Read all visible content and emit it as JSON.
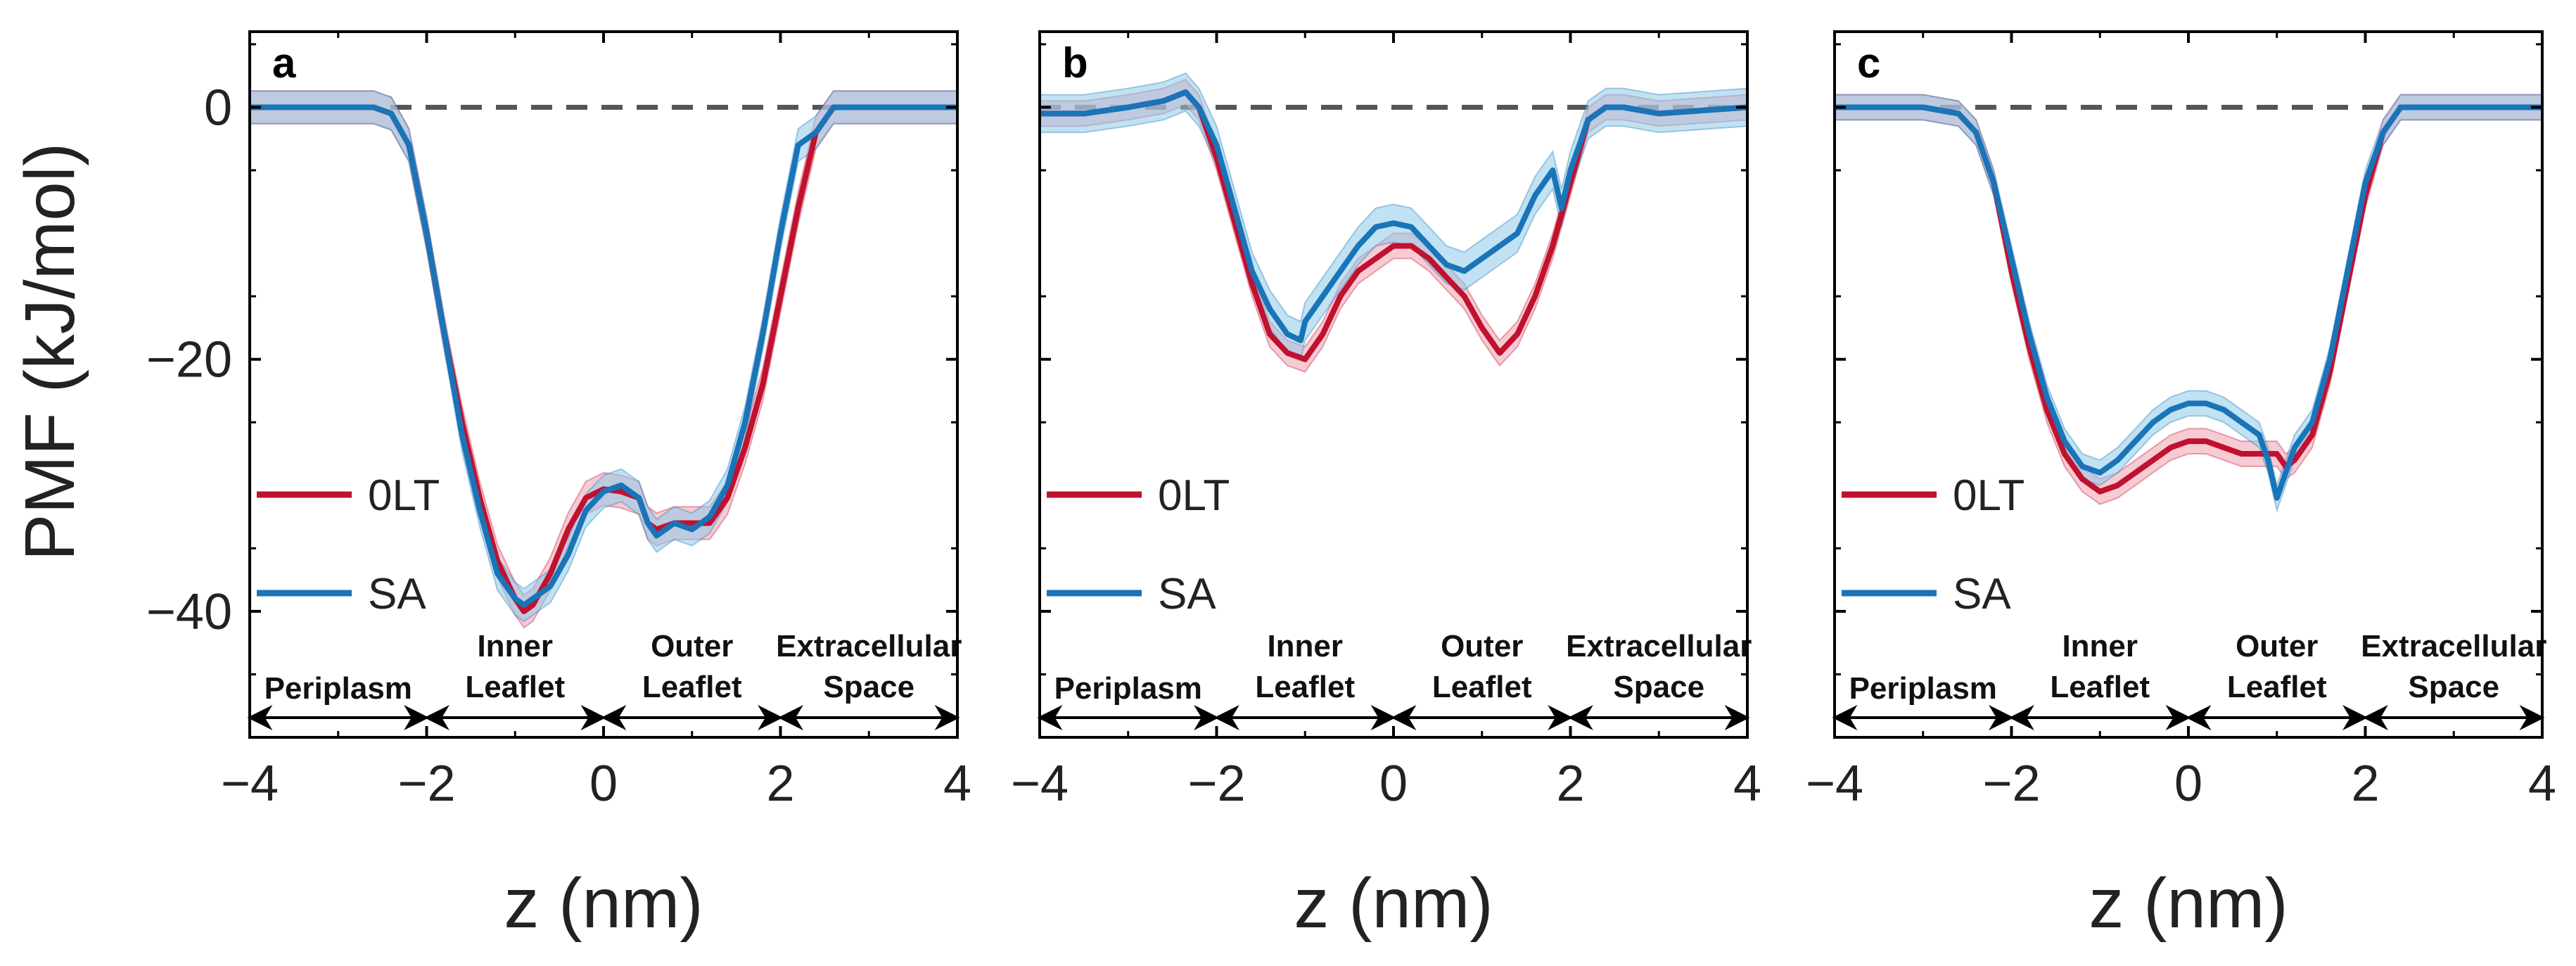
{
  "chart_data": {
    "type": "line",
    "ylabel": "PMF (kJ/mol)",
    "xlabel": "z (nm)",
    "xlim": [
      -4,
      4
    ],
    "ylim": [
      -50,
      6
    ],
    "xticks": [
      -4,
      -2,
      0,
      2,
      4
    ],
    "xtick_labels": [
      "−4",
      "−2",
      "0",
      "2",
      "4"
    ],
    "yticks": [
      0,
      -20,
      -40
    ],
    "ytick_labels": [
      "0",
      "−20",
      "−40"
    ],
    "reference_line": {
      "y": 0,
      "style": "dashed",
      "color": "#555555"
    },
    "colors": {
      "0LT": "#c0112f",
      "SA": "#1a74b8",
      "band_0LT": "#f0a0ae",
      "band_SA": "#8ecbea"
    },
    "regions": [
      {
        "label_lines": [
          "Periplasm"
        ],
        "x_start": -4,
        "x_end": -2
      },
      {
        "label_lines": [
          "Inner",
          "Leaflet"
        ],
        "x_start": -2,
        "x_end": 0
      },
      {
        "label_lines": [
          "Outer",
          "Leaflet"
        ],
        "x_start": 0,
        "x_end": 2
      },
      {
        "label_lines": [
          "Extracellular",
          "Space"
        ],
        "x_start": 2,
        "x_end": 4
      }
    ],
    "panels": [
      {
        "letter": "a",
        "series": [
          {
            "name": "0LT",
            "band": 1.3,
            "points": [
              [
                -4,
                0
              ],
              [
                -3,
                0
              ],
              [
                -2.6,
                0
              ],
              [
                -2.4,
                -0.5
              ],
              [
                -2.2,
                -3
              ],
              [
                -2,
                -10
              ],
              [
                -1.8,
                -18
              ],
              [
                -1.6,
                -25
              ],
              [
                -1.4,
                -31
              ],
              [
                -1.2,
                -36
              ],
              [
                -1.0,
                -39
              ],
              [
                -0.9,
                -40
              ],
              [
                -0.8,
                -39.5
              ],
              [
                -0.6,
                -37
              ],
              [
                -0.4,
                -33.5
              ],
              [
                -0.2,
                -31
              ],
              [
                0,
                -30.3
              ],
              [
                0.2,
                -30.5
              ],
              [
                0.4,
                -31
              ],
              [
                0.5,
                -33
              ],
              [
                0.6,
                -33.5
              ],
              [
                0.8,
                -33
              ],
              [
                1.0,
                -33
              ],
              [
                1.2,
                -33
              ],
              [
                1.4,
                -31
              ],
              [
                1.6,
                -27
              ],
              [
                1.8,
                -22
              ],
              [
                2.0,
                -15
              ],
              [
                2.2,
                -8
              ],
              [
                2.4,
                -2
              ],
              [
                2.6,
                0
              ],
              [
                3,
                0
              ],
              [
                4,
                0
              ]
            ]
          },
          {
            "name": "SA",
            "band": 1.3,
            "points": [
              [
                -4,
                0
              ],
              [
                -3,
                0
              ],
              [
                -2.6,
                0
              ],
              [
                -2.4,
                -0.5
              ],
              [
                -2.2,
                -3
              ],
              [
                -2,
                -10
              ],
              [
                -1.8,
                -18
              ],
              [
                -1.6,
                -26
              ],
              [
                -1.4,
                -32
              ],
              [
                -1.2,
                -37
              ],
              [
                -1.0,
                -39
              ],
              [
                -0.9,
                -39.5
              ],
              [
                -0.8,
                -39
              ],
              [
                -0.6,
                -38
              ],
              [
                -0.4,
                -35.5
              ],
              [
                -0.2,
                -32
              ],
              [
                0,
                -30.5
              ],
              [
                0.2,
                -30
              ],
              [
                0.4,
                -31
              ],
              [
                0.5,
                -33
              ],
              [
                0.6,
                -34
              ],
              [
                0.8,
                -33
              ],
              [
                1.0,
                -33.5
              ],
              [
                1.2,
                -32.5
              ],
              [
                1.4,
                -30
              ],
              [
                1.6,
                -25
              ],
              [
                1.8,
                -18
              ],
              [
                2.0,
                -10
              ],
              [
                2.2,
                -3
              ],
              [
                2.4,
                -2
              ],
              [
                2.6,
                0
              ],
              [
                3,
                0
              ],
              [
                4,
                0
              ]
            ]
          }
        ]
      },
      {
        "letter": "b",
        "series": [
          {
            "name": "0LT",
            "band": 1.0,
            "points": [
              [
                -4,
                -0.5
              ],
              [
                -3.5,
                -0.5
              ],
              [
                -3,
                0
              ],
              [
                -2.6,
                0.5
              ],
              [
                -2.35,
                1.2
              ],
              [
                -2.2,
                0
              ],
              [
                -2.0,
                -4
              ],
              [
                -1.8,
                -9
              ],
              [
                -1.6,
                -14
              ],
              [
                -1.4,
                -18
              ],
              [
                -1.2,
                -19.5
              ],
              [
                -1.0,
                -20
              ],
              [
                -0.8,
                -18
              ],
              [
                -0.6,
                -15
              ],
              [
                -0.4,
                -13
              ],
              [
                -0.2,
                -12
              ],
              [
                0,
                -11
              ],
              [
                0.2,
                -11
              ],
              [
                0.4,
                -12
              ],
              [
                0.6,
                -13.5
              ],
              [
                0.8,
                -15
              ],
              [
                1.0,
                -17.5
              ],
              [
                1.2,
                -19.5
              ],
              [
                1.4,
                -18
              ],
              [
                1.6,
                -15
              ],
              [
                1.8,
                -11
              ],
              [
                2.0,
                -6
              ],
              [
                2.2,
                -1
              ],
              [
                2.4,
                0
              ],
              [
                2.6,
                0
              ],
              [
                3,
                -0.5
              ],
              [
                4,
                0
              ]
            ]
          },
          {
            "name": "SA",
            "band": 1.5,
            "points": [
              [
                -4,
                -0.5
              ],
              [
                -3.5,
                -0.5
              ],
              [
                -3,
                0
              ],
              [
                -2.6,
                0.5
              ],
              [
                -2.35,
                1.2
              ],
              [
                -2.2,
                0
              ],
              [
                -2.0,
                -3
              ],
              [
                -1.8,
                -8
              ],
              [
                -1.6,
                -13
              ],
              [
                -1.4,
                -16
              ],
              [
                -1.2,
                -18
              ],
              [
                -1.05,
                -18.5
              ],
              [
                -1.0,
                -17
              ],
              [
                -0.8,
                -15
              ],
              [
                -0.6,
                -13
              ],
              [
                -0.4,
                -11
              ],
              [
                -0.2,
                -9.5
              ],
              [
                0,
                -9.2
              ],
              [
                0.2,
                -9.5
              ],
              [
                0.4,
                -11
              ],
              [
                0.6,
                -12.5
              ],
              [
                0.8,
                -13
              ],
              [
                1.0,
                -12
              ],
              [
                1.2,
                -11
              ],
              [
                1.4,
                -10
              ],
              [
                1.6,
                -7
              ],
              [
                1.8,
                -5
              ],
              [
                1.9,
                -8
              ],
              [
                2.0,
                -5
              ],
              [
                2.2,
                -1
              ],
              [
                2.4,
                0
              ],
              [
                2.6,
                0
              ],
              [
                3,
                -0.5
              ],
              [
                4,
                0
              ]
            ]
          }
        ]
      },
      {
        "letter": "c",
        "series": [
          {
            "name": "0LT",
            "band": 1.0,
            "points": [
              [
                -4,
                0
              ],
              [
                -3,
                0
              ],
              [
                -2.6,
                -0.5
              ],
              [
                -2.4,
                -2
              ],
              [
                -2.2,
                -6
              ],
              [
                -2,
                -13
              ],
              [
                -1.8,
                -19
              ],
              [
                -1.6,
                -24
              ],
              [
                -1.4,
                -27.5
              ],
              [
                -1.2,
                -29.5
              ],
              [
                -1.0,
                -30.5
              ],
              [
                -0.8,
                -30
              ],
              [
                -0.6,
                -29
              ],
              [
                -0.4,
                -28
              ],
              [
                -0.2,
                -27
              ],
              [
                0,
                -26.5
              ],
              [
                0.2,
                -26.5
              ],
              [
                0.4,
                -27
              ],
              [
                0.6,
                -27.5
              ],
              [
                0.8,
                -27.5
              ],
              [
                1.0,
                -27.5
              ],
              [
                1.1,
                -28.5
              ],
              [
                1.2,
                -28
              ],
              [
                1.4,
                -26
              ],
              [
                1.6,
                -21
              ],
              [
                1.8,
                -14
              ],
              [
                2.0,
                -7
              ],
              [
                2.2,
                -2
              ],
              [
                2.4,
                0
              ],
              [
                2.6,
                0
              ],
              [
                3,
                0
              ],
              [
                4,
                0
              ]
            ]
          },
          {
            "name": "SA",
            "band": 1.0,
            "points": [
              [
                -4,
                0
              ],
              [
                -3,
                0
              ],
              [
                -2.6,
                -0.5
              ],
              [
                -2.4,
                -2
              ],
              [
                -2.2,
                -6
              ],
              [
                -2,
                -12
              ],
              [
                -1.8,
                -18
              ],
              [
                -1.6,
                -23
              ],
              [
                -1.4,
                -26.5
              ],
              [
                -1.2,
                -28.5
              ],
              [
                -1.0,
                -29
              ],
              [
                -0.8,
                -28
              ],
              [
                -0.6,
                -26.5
              ],
              [
                -0.4,
                -25
              ],
              [
                -0.2,
                -24
              ],
              [
                0,
                -23.5
              ],
              [
                0.2,
                -23.5
              ],
              [
                0.4,
                -24
              ],
              [
                0.6,
                -25
              ],
              [
                0.8,
                -26
              ],
              [
                0.9,
                -28
              ],
              [
                1.0,
                -31
              ],
              [
                1.1,
                -29
              ],
              [
                1.2,
                -27
              ],
              [
                1.4,
                -25
              ],
              [
                1.6,
                -20
              ],
              [
                1.8,
                -13
              ],
              [
                2.0,
                -6
              ],
              [
                2.2,
                -2
              ],
              [
                2.4,
                0
              ],
              [
                2.6,
                0
              ],
              [
                3,
                0
              ],
              [
                4,
                0
              ]
            ]
          }
        ]
      }
    ]
  }
}
